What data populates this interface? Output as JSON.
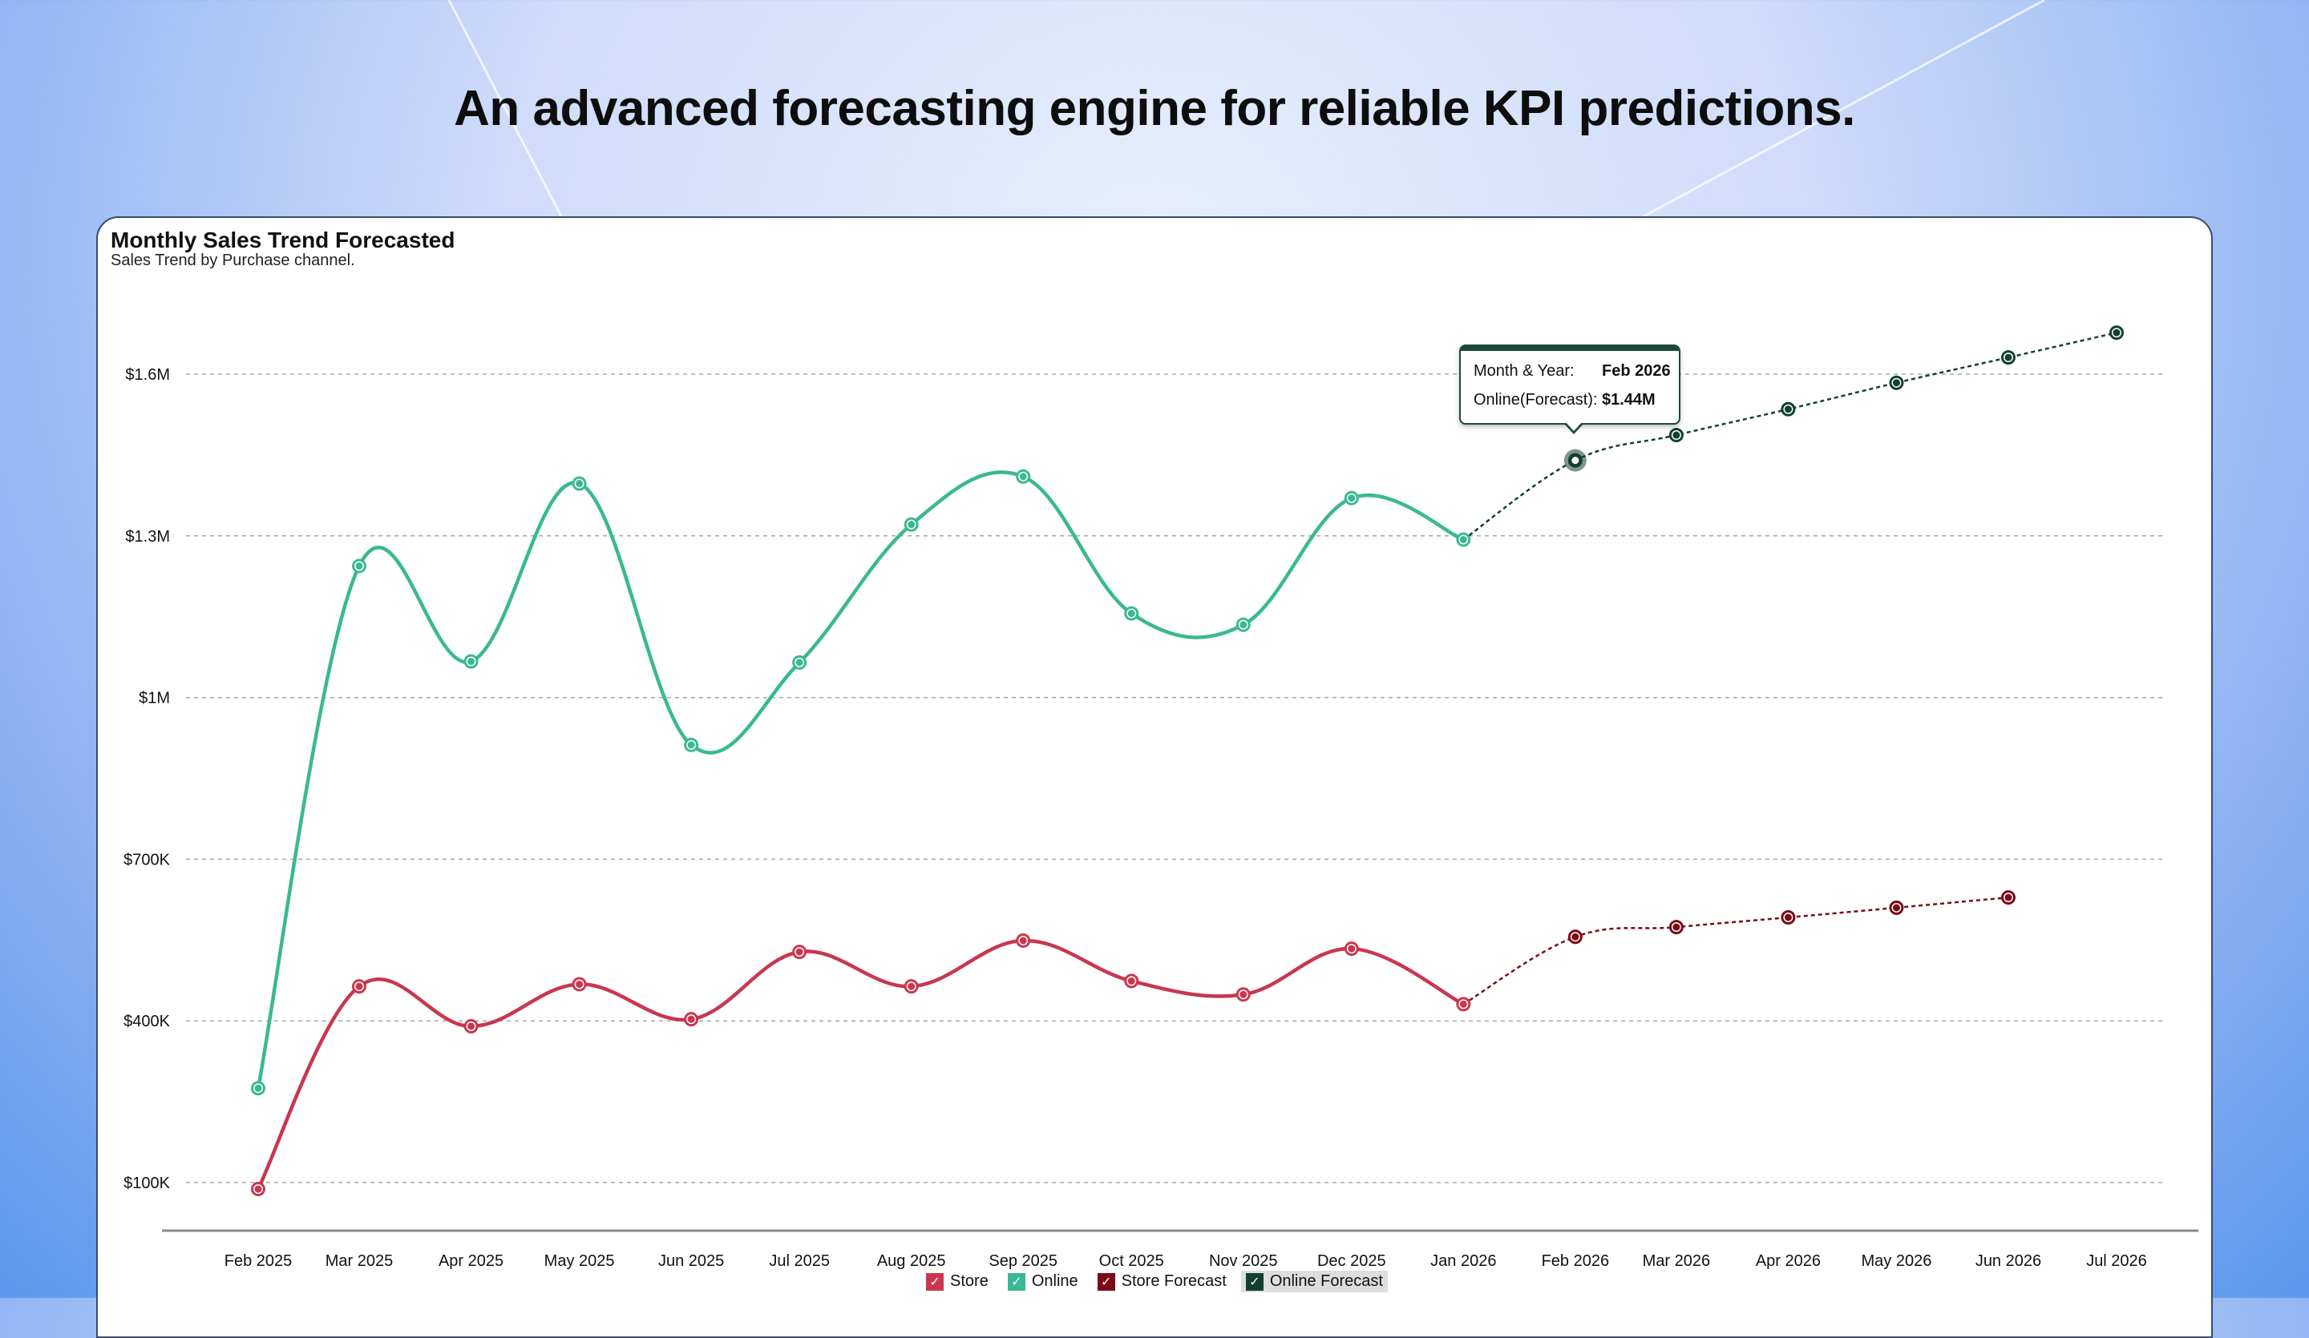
{
  "page": {
    "headline": "An advanced forecasting engine for reliable KPI predictions."
  },
  "card": {
    "title": "Monthly Sales Trend Forecasted",
    "subtitle": "Sales Trend by Purchase channel."
  },
  "tooltip": {
    "label1": "Month & Year:",
    "value1": "Feb 2026",
    "label2": "Online(Forecast):",
    "value2": "$1.44M",
    "target_series": "Online Forecast",
    "target_category": "Feb 2026"
  },
  "legend": [
    {
      "label": "Store",
      "color": "#c8374f",
      "checked": true,
      "active": false
    },
    {
      "label": "Online",
      "color": "#3ab894",
      "checked": true,
      "active": false
    },
    {
      "label": "Store Forecast",
      "color": "#7a0a16",
      "checked": true,
      "active": false
    },
    {
      "label": "Online Forecast",
      "color": "#12402f",
      "checked": true,
      "active": true
    }
  ],
  "chart_data": {
    "type": "line",
    "title": "Monthly Sales Trend Forecasted",
    "subtitle": "Sales Trend by Purchase channel.",
    "xlabel": "",
    "ylabel": "",
    "categories": [
      "Feb 2025",
      "Mar 2025",
      "Apr 2025",
      "May 2025",
      "Jun 2025",
      "Jul 2025",
      "Aug 2025",
      "Sep 2025",
      "Oct 2025",
      "Nov 2025",
      "Dec 2025",
      "Jan 2026",
      "Feb 2026",
      "Mar 2026",
      "Apr 2026",
      "May 2026",
      "Jun 2026",
      "Jul 2026"
    ],
    "y_ticks": [
      100000,
      400000,
      700000,
      1000000,
      1300000,
      1600000
    ],
    "y_tick_labels": [
      "$100K",
      "$400K",
      "$700K",
      "$1M",
      "$1.3M",
      "$1.6M"
    ],
    "ylim": [
      0,
      1800000
    ],
    "grid": true,
    "legend_position": "bottom",
    "series": [
      {
        "name": "Store",
        "color": "#c8374f",
        "style": "solid",
        "smooth": true,
        "values": [
          88000,
          464000,
          390000,
          468000,
          403000,
          528000,
          464000,
          549000,
          474000,
          449000,
          534000,
          431000,
          null,
          null,
          null,
          null,
          null,
          null
        ]
      },
      {
        "name": "Online",
        "color": "#3ab894",
        "style": "solid",
        "smooth": true,
        "values": [
          275000,
          1244000,
          1067000,
          1397000,
          912000,
          1065000,
          1321000,
          1410000,
          1156000,
          1135000,
          1370000,
          1293000,
          null,
          null,
          null,
          null,
          null,
          null
        ]
      },
      {
        "name": "Store Forecast",
        "color": "#7a0a16",
        "style": "dotted",
        "smooth": true,
        "values": [
          null,
          null,
          null,
          null,
          null,
          null,
          null,
          null,
          null,
          null,
          null,
          431000,
          556000,
          574000,
          592000,
          610000,
          629000,
          null
        ]
      },
      {
        "name": "Online Forecast",
        "color": "#12402f",
        "style": "dotted",
        "smooth": true,
        "values": [
          null,
          null,
          null,
          null,
          null,
          null,
          null,
          null,
          null,
          null,
          null,
          1293000,
          1440000,
          1487000,
          1535000,
          1584000,
          1631000,
          1677000
        ]
      }
    ]
  }
}
